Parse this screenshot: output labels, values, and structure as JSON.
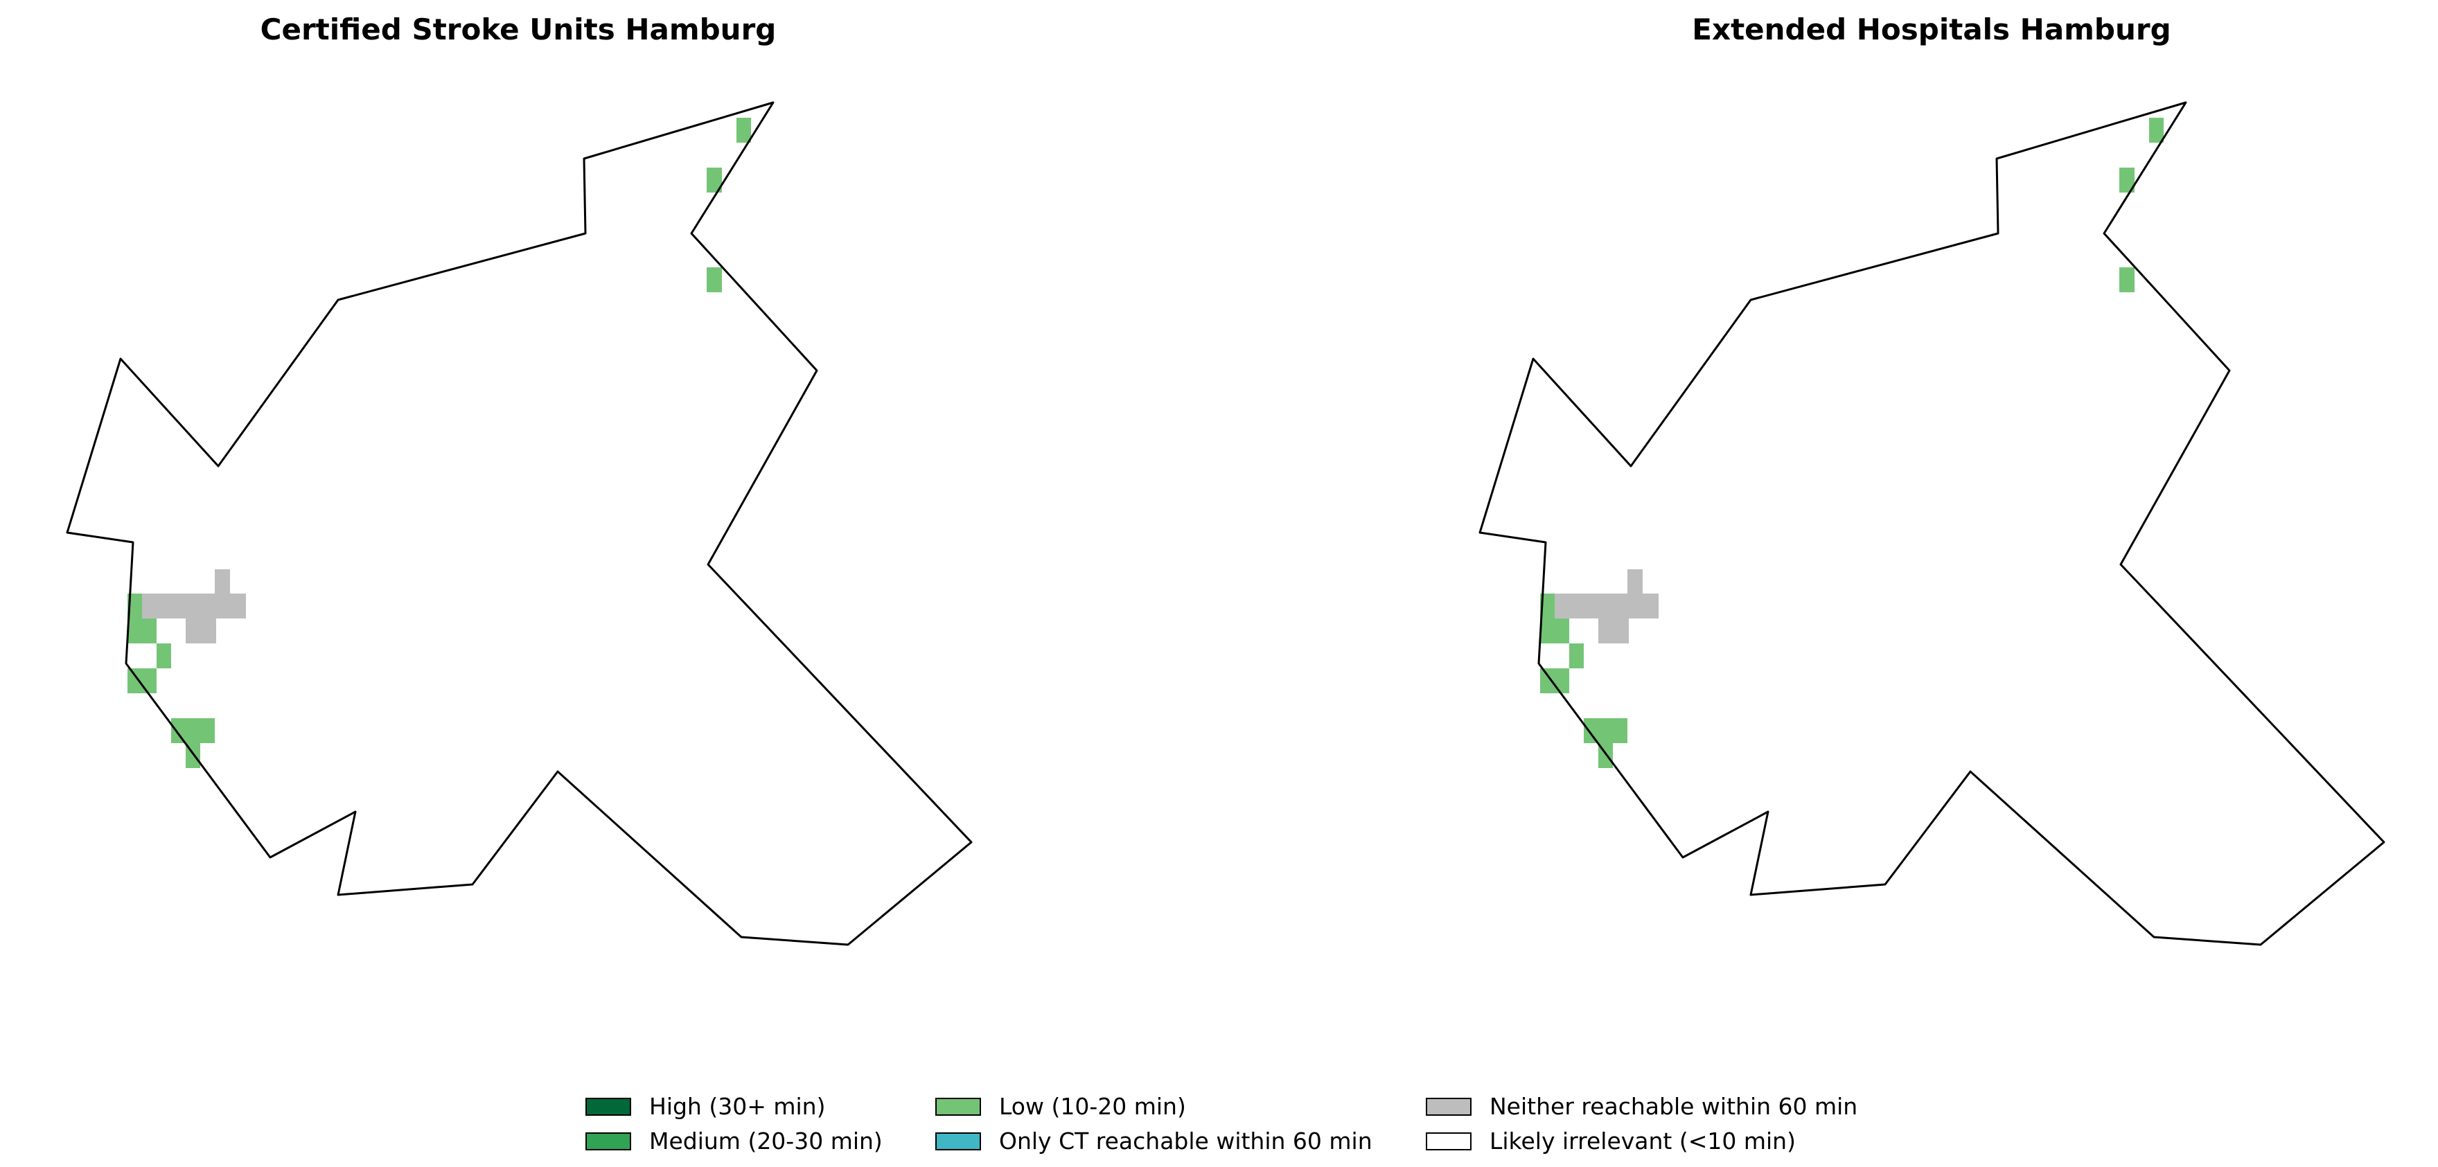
{
  "panels": [
    {
      "title": "Certified Stroke Units Hamburg"
    },
    {
      "title": "Extended Hospitals Hamburg"
    }
  ],
  "legend": [
    {
      "label": "High (30+ min)",
      "color": "#00683a"
    },
    {
      "label": "Medium (20-30 min)",
      "color": "#31a354"
    },
    {
      "label": "Low (10-20 min)",
      "color": "#74c476"
    },
    {
      "label": "Only CT reachable within 60 min",
      "color": "#41b6c4"
    },
    {
      "label": "Neither reachable within 60 min",
      "color": "#bdbdbd"
    },
    {
      "label": "Likely irrelevant (<10 min)",
      "color": "#ffffff"
    }
  ]
}
